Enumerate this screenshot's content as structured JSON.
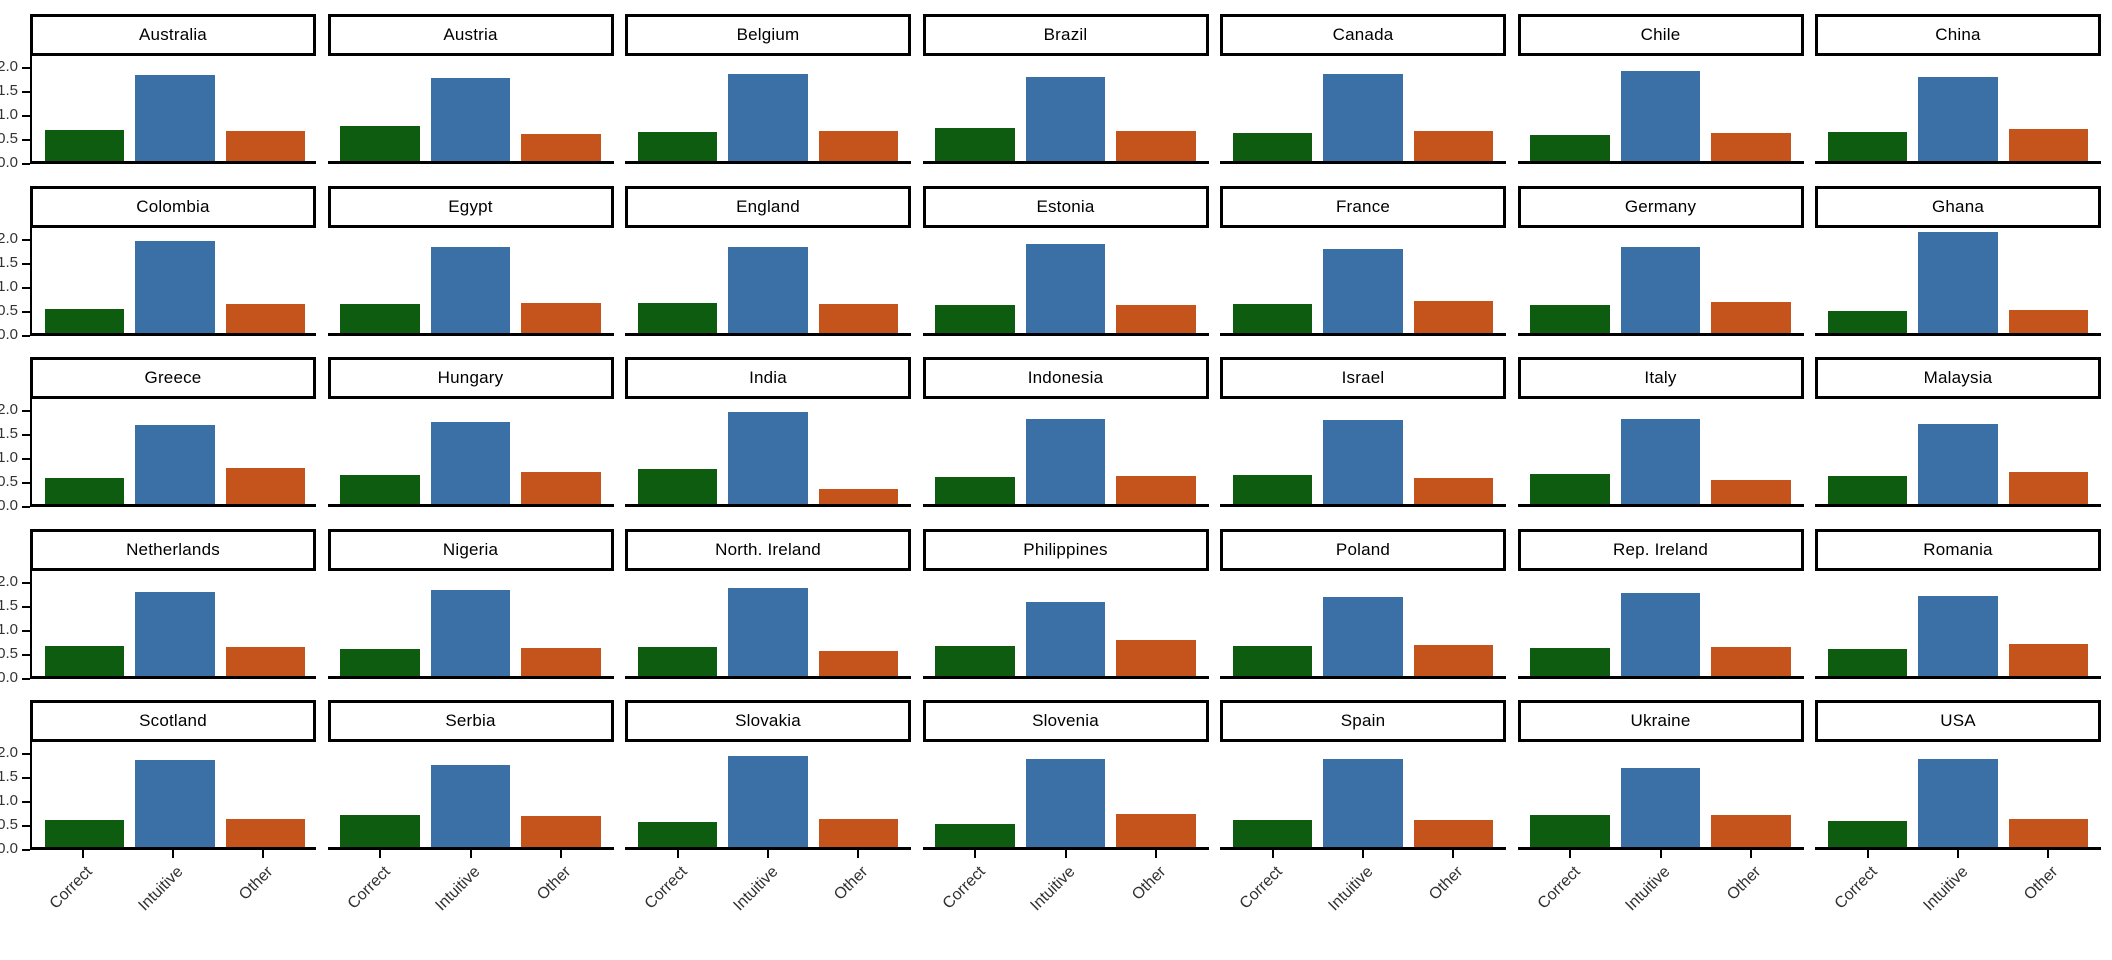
{
  "chart_data": {
    "type": "bar",
    "faceted": true,
    "facet_grid": {
      "rows": 5,
      "cols": 7
    },
    "title": "",
    "xlabel": "",
    "ylabel": "",
    "categories": [
      "Correct",
      "Intuitive",
      "Other"
    ],
    "bar_colors": {
      "Correct": "#0E5C10",
      "Intuitive": "#3B70A6",
      "Other": "#C4541B"
    },
    "y_ticks": [
      0.0,
      0.5,
      1.0,
      1.5,
      2.0
    ],
    "y_tick_labels": [
      "0.0",
      "0.5",
      "1.0",
      "1.5",
      "2.0"
    ],
    "ylim": [
      0,
      2.25
    ],
    "grid": false,
    "legend": "none",
    "facets": [
      {
        "label": "Australia",
        "values": [
          0.65,
          1.79,
          0.62
        ]
      },
      {
        "label": "Austria",
        "values": [
          0.72,
          1.72,
          0.57
        ]
      },
      {
        "label": "Belgium",
        "values": [
          0.6,
          1.81,
          0.63
        ]
      },
      {
        "label": "Brazil",
        "values": [
          0.68,
          1.76,
          0.62
        ]
      },
      {
        "label": "Canada",
        "values": [
          0.58,
          1.82,
          0.63
        ]
      },
      {
        "label": "Chile",
        "values": [
          0.55,
          1.88,
          0.59
        ]
      },
      {
        "label": "China",
        "values": [
          0.61,
          1.74,
          0.67
        ]
      },
      {
        "label": "Colombia",
        "values": [
          0.5,
          1.92,
          0.61
        ]
      },
      {
        "label": "Egypt",
        "values": [
          0.61,
          1.79,
          0.63
        ]
      },
      {
        "label": "England",
        "values": [
          0.63,
          1.79,
          0.61
        ]
      },
      {
        "label": "Estonia",
        "values": [
          0.58,
          1.85,
          0.59
        ]
      },
      {
        "label": "France",
        "values": [
          0.6,
          1.74,
          0.67
        ]
      },
      {
        "label": "Germany",
        "values": [
          0.58,
          1.8,
          0.65
        ]
      },
      {
        "label": "Ghana",
        "values": [
          0.46,
          2.1,
          0.47
        ]
      },
      {
        "label": "Greece",
        "values": [
          0.55,
          1.64,
          0.74
        ]
      },
      {
        "label": "Hungary",
        "values": [
          0.6,
          1.71,
          0.66
        ]
      },
      {
        "label": "India",
        "values": [
          0.73,
          1.91,
          0.31
        ]
      },
      {
        "label": "Indonesia",
        "values": [
          0.56,
          1.77,
          0.58
        ]
      },
      {
        "label": "Israel",
        "values": [
          0.6,
          1.76,
          0.55
        ]
      },
      {
        "label": "Italy",
        "values": [
          0.63,
          1.78,
          0.51
        ]
      },
      {
        "label": "Malaysia",
        "values": [
          0.59,
          1.67,
          0.66
        ]
      },
      {
        "label": "Netherlands",
        "values": [
          0.62,
          1.74,
          0.6
        ]
      },
      {
        "label": "Nigeria",
        "values": [
          0.57,
          1.79,
          0.59
        ]
      },
      {
        "label": "North. Ireland",
        "values": [
          0.6,
          1.83,
          0.53
        ]
      },
      {
        "label": "Philippines",
        "values": [
          0.62,
          1.55,
          0.75
        ]
      },
      {
        "label": "Poland",
        "values": [
          0.63,
          1.64,
          0.65
        ]
      },
      {
        "label": "Rep. Ireland",
        "values": [
          0.59,
          1.72,
          0.61
        ]
      },
      {
        "label": "Romania",
        "values": [
          0.57,
          1.67,
          0.66
        ]
      },
      {
        "label": "Scotland",
        "values": [
          0.57,
          1.82,
          0.59
        ]
      },
      {
        "label": "Serbia",
        "values": [
          0.66,
          1.7,
          0.64
        ]
      },
      {
        "label": "Slovakia",
        "values": [
          0.53,
          1.89,
          0.58
        ]
      },
      {
        "label": "Slovenia",
        "values": [
          0.48,
          1.84,
          0.68
        ]
      },
      {
        "label": "Spain",
        "values": [
          0.56,
          1.83,
          0.57
        ]
      },
      {
        "label": "Ukraine",
        "values": [
          0.66,
          1.65,
          0.67
        ]
      },
      {
        "label": "USA",
        "values": [
          0.54,
          1.84,
          0.58
        ]
      }
    ]
  }
}
